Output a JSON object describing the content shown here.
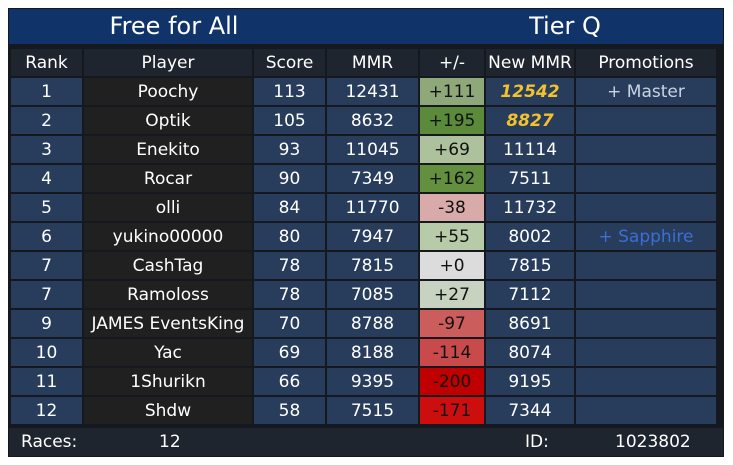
{
  "header": {
    "mode": "Free for All",
    "tier": "Tier Q"
  },
  "columns": {
    "rank": "Rank",
    "player": "Player",
    "score": "Score",
    "mmr": "MMR",
    "delta": "+/-",
    "new_mmr": "New MMR",
    "promotions": "Promotions"
  },
  "rows": [
    {
      "rank": "1",
      "player": "Poochy",
      "score": "113",
      "mmr": "12431",
      "delta": "+111",
      "delta_color": "#8ea87a",
      "new_mmr": "12542",
      "new_highlight": true,
      "promotion": "+ Master",
      "promotion_color": "#c9d4e3"
    },
    {
      "rank": "2",
      "player": "Optik",
      "score": "105",
      "mmr": "8632",
      "delta": "+195",
      "delta_color": "#5b8a3a",
      "new_mmr": "8827",
      "new_highlight": true,
      "promotion": "",
      "promotion_color": "#c9d4e3"
    },
    {
      "rank": "3",
      "player": "Enekito",
      "score": "93",
      "mmr": "11045",
      "delta": "+69",
      "delta_color": "#acc19c",
      "new_mmr": "11114",
      "new_highlight": false,
      "promotion": "",
      "promotion_color": "#c9d4e3"
    },
    {
      "rank": "4",
      "player": "Rocar",
      "score": "90",
      "mmr": "7349",
      "delta": "+162",
      "delta_color": "#62903f",
      "new_mmr": "7511",
      "new_highlight": false,
      "promotion": "",
      "promotion_color": "#c9d4e3"
    },
    {
      "rank": "5",
      "player": "olli",
      "score": "84",
      "mmr": "11770",
      "delta": "-38",
      "delta_color": "#d9aaaa",
      "new_mmr": "11732",
      "new_highlight": false,
      "promotion": "",
      "promotion_color": "#c9d4e3"
    },
    {
      "rank": "6",
      "player": "yukino00000",
      "score": "80",
      "mmr": "7947",
      "delta": "+55",
      "delta_color": "#b8cba9",
      "new_mmr": "8002",
      "new_highlight": false,
      "promotion": "+ Sapphire",
      "promotion_color": "#3a6fd6"
    },
    {
      "rank": "7",
      "player": "CashTag",
      "score": "78",
      "mmr": "7815",
      "delta": "+0",
      "delta_color": "#dcdcdc",
      "new_mmr": "7815",
      "new_highlight": false,
      "promotion": "",
      "promotion_color": "#c9d4e3"
    },
    {
      "rank": "7",
      "player": "Ramoloss",
      "score": "78",
      "mmr": "7085",
      "delta": "+27",
      "delta_color": "#c8d2c0",
      "new_mmr": "7112",
      "new_highlight": false,
      "promotion": "",
      "promotion_color": "#c9d4e3"
    },
    {
      "rank": "9",
      "player": "JAMES EventsKing",
      "score": "70",
      "mmr": "8788",
      "delta": "-97",
      "delta_color": "#cc5d5d",
      "new_mmr": "8691",
      "new_highlight": false,
      "promotion": "",
      "promotion_color": "#c9d4e3"
    },
    {
      "rank": "10",
      "player": "Yac",
      "score": "69",
      "mmr": "8188",
      "delta": "-114",
      "delta_color": "#c94a4a",
      "new_mmr": "8074",
      "new_highlight": false,
      "promotion": "",
      "promotion_color": "#c9d4e3"
    },
    {
      "rank": "11",
      "player": "1Shurikn",
      "score": "66",
      "mmr": "9395",
      "delta": "-200",
      "delta_color": "#c00000",
      "new_mmr": "9195",
      "new_highlight": false,
      "promotion": "",
      "promotion_color": "#c9d4e3"
    },
    {
      "rank": "12",
      "player": "Shdw",
      "score": "58",
      "mmr": "7515",
      "delta": "-171",
      "delta_color": "#cc0e0e",
      "new_mmr": "7344",
      "new_highlight": false,
      "promotion": "",
      "promotion_color": "#c9d4e3"
    }
  ],
  "footer": {
    "races_label": "Races:",
    "races_value": "12",
    "id_label": "ID:",
    "id_value": "1023802"
  },
  "colors": {
    "title_background": "#10346a",
    "row_blue": "#283c5c",
    "row_dark": "#202020",
    "header_background": "#1f252e",
    "new_mmr_highlight": "#f2c12e"
  }
}
